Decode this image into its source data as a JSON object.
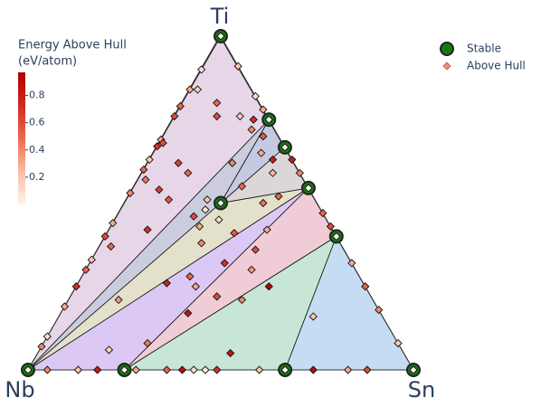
{
  "chart_data": {
    "type": "ternary",
    "axis_labels": {
      "top": "Ti",
      "left": "Nb",
      "right": "Sn"
    },
    "colorbar": {
      "title": [
        "Energy Above Hull",
        "(eV/atom)"
      ],
      "clim": [
        0,
        0.97
      ],
      "ticks": [
        0.2,
        0.4,
        0.6,
        0.8
      ],
      "colorscale": [
        [
          0,
          "#fff3ec"
        ],
        [
          0.25,
          "#f8bea4"
        ],
        [
          0.5,
          "#ec6a4e"
        ],
        [
          0.75,
          "#cf2a21"
        ],
        [
          1,
          "#b00000"
        ]
      ]
    },
    "legend": "top-right",
    "stable": {
      "name": "Stable",
      "color": "#137a13",
      "ti": [
        1,
        0.75,
        0.667,
        0.545,
        0.4,
        0.5,
        0,
        0,
        0,
        0
      ],
      "sn": [
        0,
        0.25,
        0.333,
        0.455,
        0.6,
        0.25,
        0,
        0.25,
        0.667,
        1
      ]
    },
    "facets": [
      {
        "vertices": [
          6,
          0,
          1
        ],
        "color": "#e6d6e8"
      },
      {
        "vertices": [
          6,
          1,
          5
        ],
        "color": "#ccccdf"
      },
      {
        "vertices": [
          5,
          1,
          2
        ],
        "color": "#c6c9e2"
      },
      {
        "vertices": [
          5,
          2,
          3
        ],
        "color": "#dcd6d8"
      },
      {
        "vertices": [
          6,
          5,
          3
        ],
        "color": "#e3e0cb"
      },
      {
        "vertices": [
          6,
          3,
          7
        ],
        "color": "#dcc8f4"
      },
      {
        "vertices": [
          7,
          3,
          4
        ],
        "color": "#f0ccd6"
      },
      {
        "vertices": [
          7,
          4,
          8
        ],
        "color": "#c8e6d6"
      },
      {
        "vertices": [
          8,
          4,
          9
        ],
        "color": "#c6dcf2"
      }
    ],
    "above_hull": {
      "name": "Above Hull",
      "color": "#f08c80",
      "ti": [
        0.9,
        0.84,
        0.79,
        0.76,
        0.69,
        0.67,
        0.63,
        0.6,
        0.53,
        0.44,
        0.4,
        0.33,
        0.3,
        0.25,
        0.19,
        0.1,
        0.07,
        0.91,
        0.82,
        0.78,
        0.63,
        0.59,
        0.47,
        0.43,
        0.32,
        0.25,
        0.18,
        0.08,
        0,
        0,
        0,
        0,
        0,
        0,
        0,
        0,
        0,
        0,
        0,
        0,
        0,
        0.84,
        0.8,
        0.76,
        0.76,
        0.75,
        0.72,
        0.7,
        0.65,
        0.63,
        0.68,
        0.62,
        0.59,
        0.51,
        0.46,
        0.45,
        0.38,
        0.41,
        0.32,
        0.42,
        0.5,
        0.59,
        0.54,
        0.37,
        0.21,
        0.26,
        0.28,
        0.22,
        0.21,
        0.25,
        0.17,
        0.25,
        0.16,
        0.08,
        0.06,
        0.05,
        0.36,
        0.48,
        0.52,
        0.3,
        0.42,
        0.57,
        0.51,
        0.43,
        0.55,
        0.62,
        1,
        0.75,
        0.667,
        0.545,
        0.4,
        0.5,
        0,
        0,
        0,
        0
      ],
      "sn": [
        0,
        0,
        0,
        0,
        0,
        0,
        0,
        0,
        0,
        0,
        0,
        0,
        0,
        0,
        0,
        0,
        0,
        0.09,
        0.18,
        0.22,
        0.37,
        0.41,
        0.53,
        0.57,
        0.68,
        0.75,
        0.82,
        0.92,
        0.05,
        0.13,
        0.18,
        0.28,
        0.36,
        0.4,
        0.43,
        0.46,
        0.49,
        0.6,
        0.74,
        0.83,
        0.88,
        0.02,
        0.09,
        0.11,
        0.17,
        0.21,
        0.22,
        0.26,
        0.28,
        0.32,
        0.01,
        0.08,
        0.12,
        0.21,
        0.2,
        0.27,
        0.26,
        0.33,
        0.35,
        0.41,
        0.36,
        0.34,
        0.07,
        0.03,
        0.13,
        0.23,
        0.28,
        0.38,
        0.45,
        0.31,
        0.33,
        0.5,
        0.66,
        0.27,
        0.18,
        0.5,
        0.41,
        0.22,
        0.39,
        0.43,
        0.1,
        0.02,
        0.11,
        0.23,
        0.28,
        0.22,
        0,
        0.25,
        0.333,
        0.455,
        0.6,
        0.25,
        0,
        0.25,
        0.667,
        1
      ],
      "values": [
        0.1,
        0.3,
        0.5,
        0.6,
        0.3,
        0.7,
        0.2,
        0.5,
        0.4,
        0.3,
        0.6,
        0.2,
        0.5,
        0.7,
        0.3,
        0.1,
        0.4,
        0.2,
        0.1,
        0.3,
        0.8,
        0.4,
        0.5,
        0.6,
        0.3,
        0.5,
        0.4,
        0.2,
        0.4,
        0.2,
        0.8,
        0.3,
        0.5,
        0.9,
        0.1,
        0.02,
        0.7,
        0.2,
        0.9,
        0.3,
        0.6,
        0.15,
        0.5,
        0.6,
        0.2,
        0.7,
        0.4,
        0.55,
        0.3,
        0.8,
        0.6,
        0.65,
        0.5,
        0.2,
        0.6,
        0.1,
        0.4,
        0.55,
        0.7,
        0.3,
        0.45,
        0.25,
        0.65,
        0.5,
        0.35,
        0.75,
        0.5,
        0.6,
        0.4,
        0.3,
        0.85,
        0.95,
        0.2,
        0.45,
        0.15,
        0.85,
        0.6,
        0.05,
        0.5,
        0.35,
        0.7,
        0.45,
        0.55,
        0.3,
        0.5,
        0.4,
        0,
        0,
        0,
        0,
        0,
        0,
        0,
        0,
        0,
        0
      ]
    }
  }
}
